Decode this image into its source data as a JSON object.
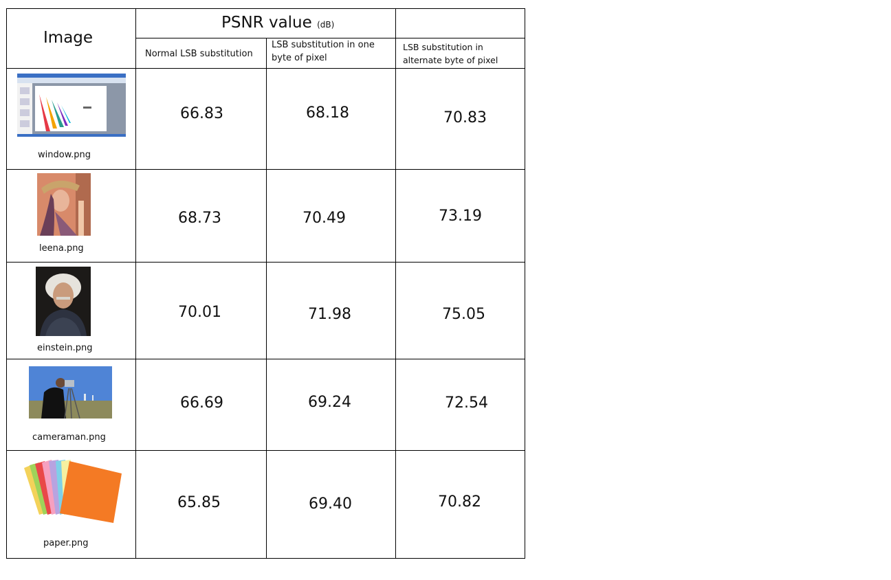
{
  "table": {
    "image_header": "Image",
    "psnr_header": "PSNR value",
    "psnr_unit": "(dB)",
    "sub_headers": [
      "Normal LSB substitution",
      "LSB substitution in one byte of pixel",
      "LSB substitution in alternate byte of pixel"
    ],
    "rows": [
      {
        "file": "window.png",
        "icon": "window-screenshot-thumbnail",
        "values": [
          "66.83",
          "68.18",
          "70.83"
        ]
      },
      {
        "file": "leena.png",
        "icon": "leena-portrait-thumbnail",
        "values": [
          "68.73",
          "70.49",
          "73.19"
        ]
      },
      {
        "file": "einstein.png",
        "icon": "einstein-portrait-thumbnail",
        "values": [
          "70.01",
          "71.98",
          "75.05"
        ]
      },
      {
        "file": "cameraman.png",
        "icon": "cameraman-photo-thumbnail",
        "values": [
          "66.69",
          "69.24",
          "72.54"
        ]
      },
      {
        "file": "paper.png",
        "icon": "colored-paper-thumbnail",
        "values": [
          "65.85",
          "69.40",
          "70.82"
        ]
      }
    ]
  }
}
